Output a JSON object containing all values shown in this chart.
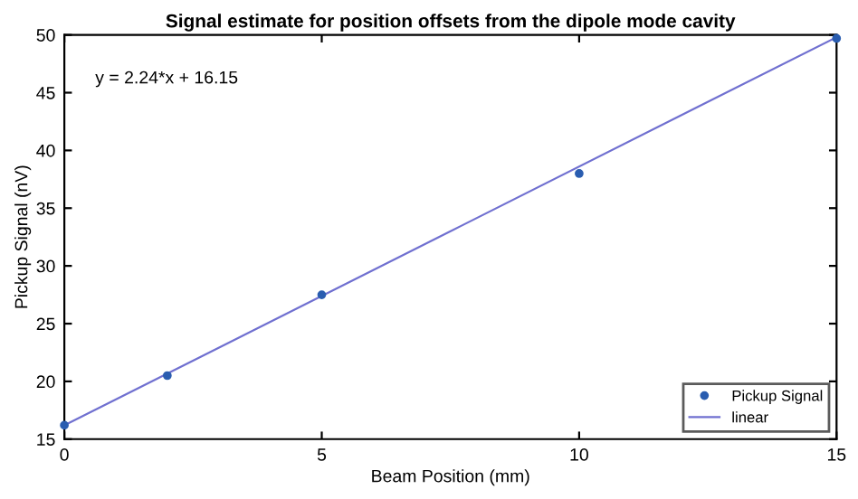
{
  "chart_data": {
    "type": "scatter",
    "title": "Signal estimate for position offsets from the dipole mode cavity",
    "xlabel": "Beam Position (mm)",
    "ylabel": "Pickup Signal (nV)",
    "annotations": [
      "y = 2.24*x + 16.15"
    ],
    "series": [
      {
        "name": "Pickup Signal",
        "color": "#2a5db0",
        "x": [
          0,
          2,
          5,
          10,
          15
        ],
        "values": [
          16.2,
          20.5,
          27.5,
          38,
          49.7
        ],
        "marker": "circle"
      },
      {
        "name": "linear",
        "type": "line",
        "color": "#7070d0",
        "x": [
          0,
          15
        ],
        "values": [
          16.2,
          49.8
        ],
        "line_style": "solid"
      }
    ],
    "xlim": [
      0,
      15
    ],
    "xticks": [
      0,
      5,
      10,
      15
    ],
    "ylim": [
      15,
      50
    ],
    "yticks": [
      15,
      20,
      25,
      30,
      35,
      40,
      45,
      50
    ],
    "grid": false,
    "legend": "bottom right"
  }
}
